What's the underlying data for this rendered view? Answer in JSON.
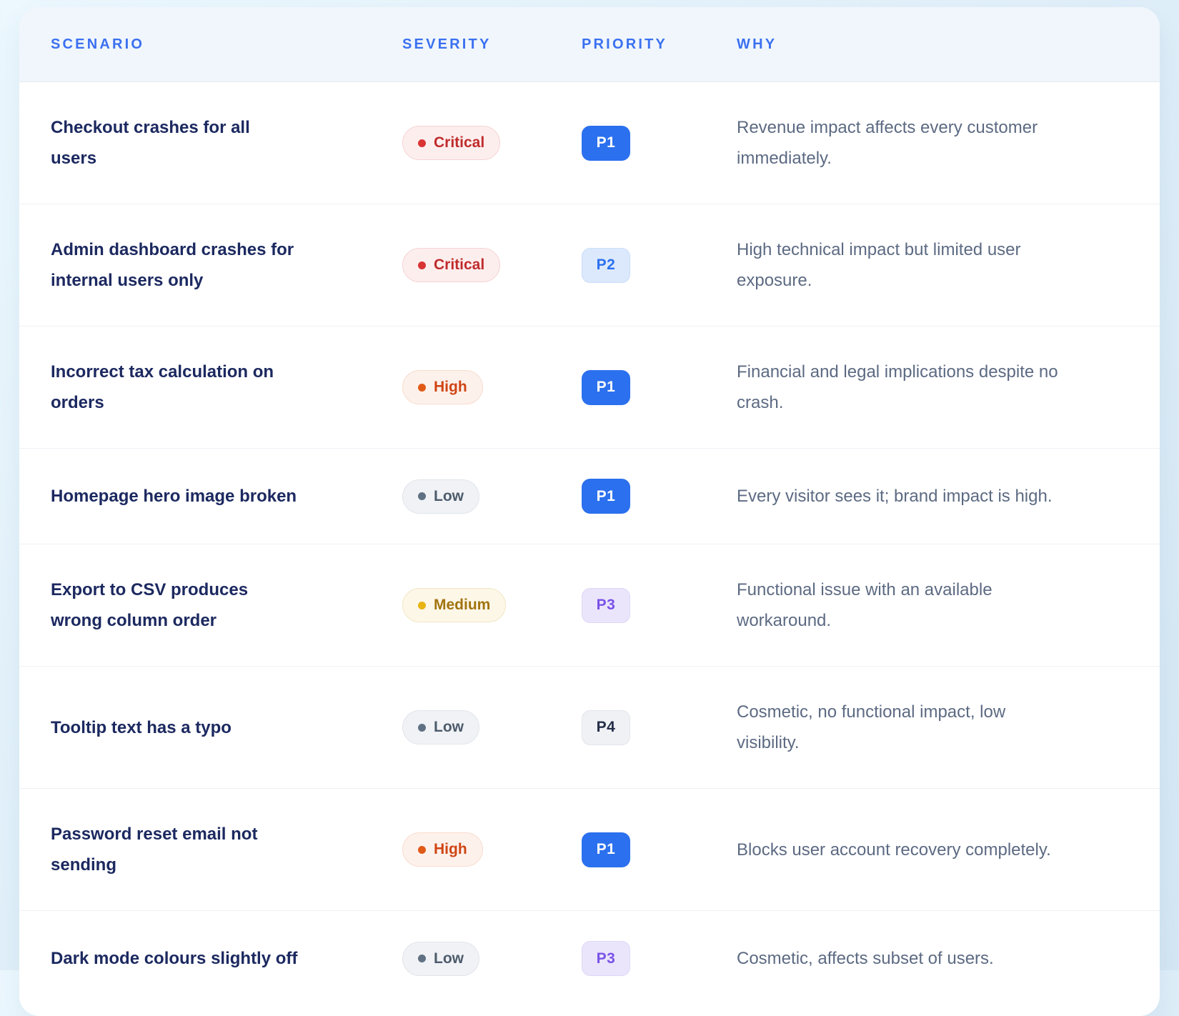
{
  "table": {
    "columns": [
      {
        "key": "scenario",
        "label": "SCENARIO"
      },
      {
        "key": "severity",
        "label": "SEVERITY"
      },
      {
        "key": "priority",
        "label": "PRIORITY"
      },
      {
        "key": "why",
        "label": "WHY"
      }
    ],
    "rows": [
      {
        "scenario": "Checkout crashes for all\nusers",
        "severity": "Critical",
        "priority": "P1",
        "why": "Revenue impact affects every customer\nimmediately."
      },
      {
        "scenario": "Admin dashboard crashes for\ninternal users only",
        "severity": "Critical",
        "priority": "P2",
        "why": "High technical impact but limited user\nexposure."
      },
      {
        "scenario": "Incorrect tax calculation on\norders",
        "severity": "High",
        "priority": "P1",
        "why": "Financial and legal implications despite no\ncrash."
      },
      {
        "scenario": "Homepage hero image broken",
        "severity": "Low",
        "priority": "P1",
        "why": "Every visitor sees it; brand impact is high."
      },
      {
        "scenario": "Export to CSV produces\nwrong column order",
        "severity": "Medium",
        "priority": "P3",
        "why": "Functional issue with an available\nworkaround."
      },
      {
        "scenario": "Tooltip text has a typo",
        "severity": "Low",
        "priority": "P4",
        "why": "Cosmetic, no functional impact, low\nvisibility."
      },
      {
        "scenario": "Password reset email not\nsending",
        "severity": "High",
        "priority": "P1",
        "why": "Blocks user account recovery completely."
      },
      {
        "scenario": "Dark mode colours slightly off",
        "severity": "Low",
        "priority": "P3",
        "why": "Cosmetic, affects subset of users."
      }
    ]
  },
  "styles": {
    "header_text_color": "#3b70f0",
    "scenario_text_color": "#1c2960",
    "why_text_color": "#5c6a82",
    "severity": {
      "Critical": {
        "bg": "#fdeeee",
        "border": "#f6d3d3",
        "text": "#c02b2b",
        "dot": "#d93434"
      },
      "High": {
        "bg": "#fdf1ec",
        "border": "#f8dcce",
        "text": "#cf4513",
        "dot": "#e05a17"
      },
      "Medium": {
        "bg": "#fdf7e8",
        "border": "#f2e6c6",
        "text": "#a1740e",
        "dot": "#e7b414"
      },
      "Low": {
        "bg": "#f0f2f5",
        "border": "#e1e5ea",
        "text": "#4c5b6b",
        "dot": "#5f7183"
      }
    },
    "priority": {
      "P1": {
        "bg": "#2b70ee",
        "border": "#2b70ee",
        "text": "#ffffff"
      },
      "P2": {
        "bg": "#dce9fc",
        "border": "#c9dcf9",
        "text": "#2b70ee"
      },
      "P3": {
        "bg": "#eae5fb",
        "border": "#ded6f7",
        "text": "#7a52e8"
      },
      "P4": {
        "bg": "#f0f1f5",
        "border": "#e2e5eb",
        "text": "#242e49"
      }
    }
  }
}
